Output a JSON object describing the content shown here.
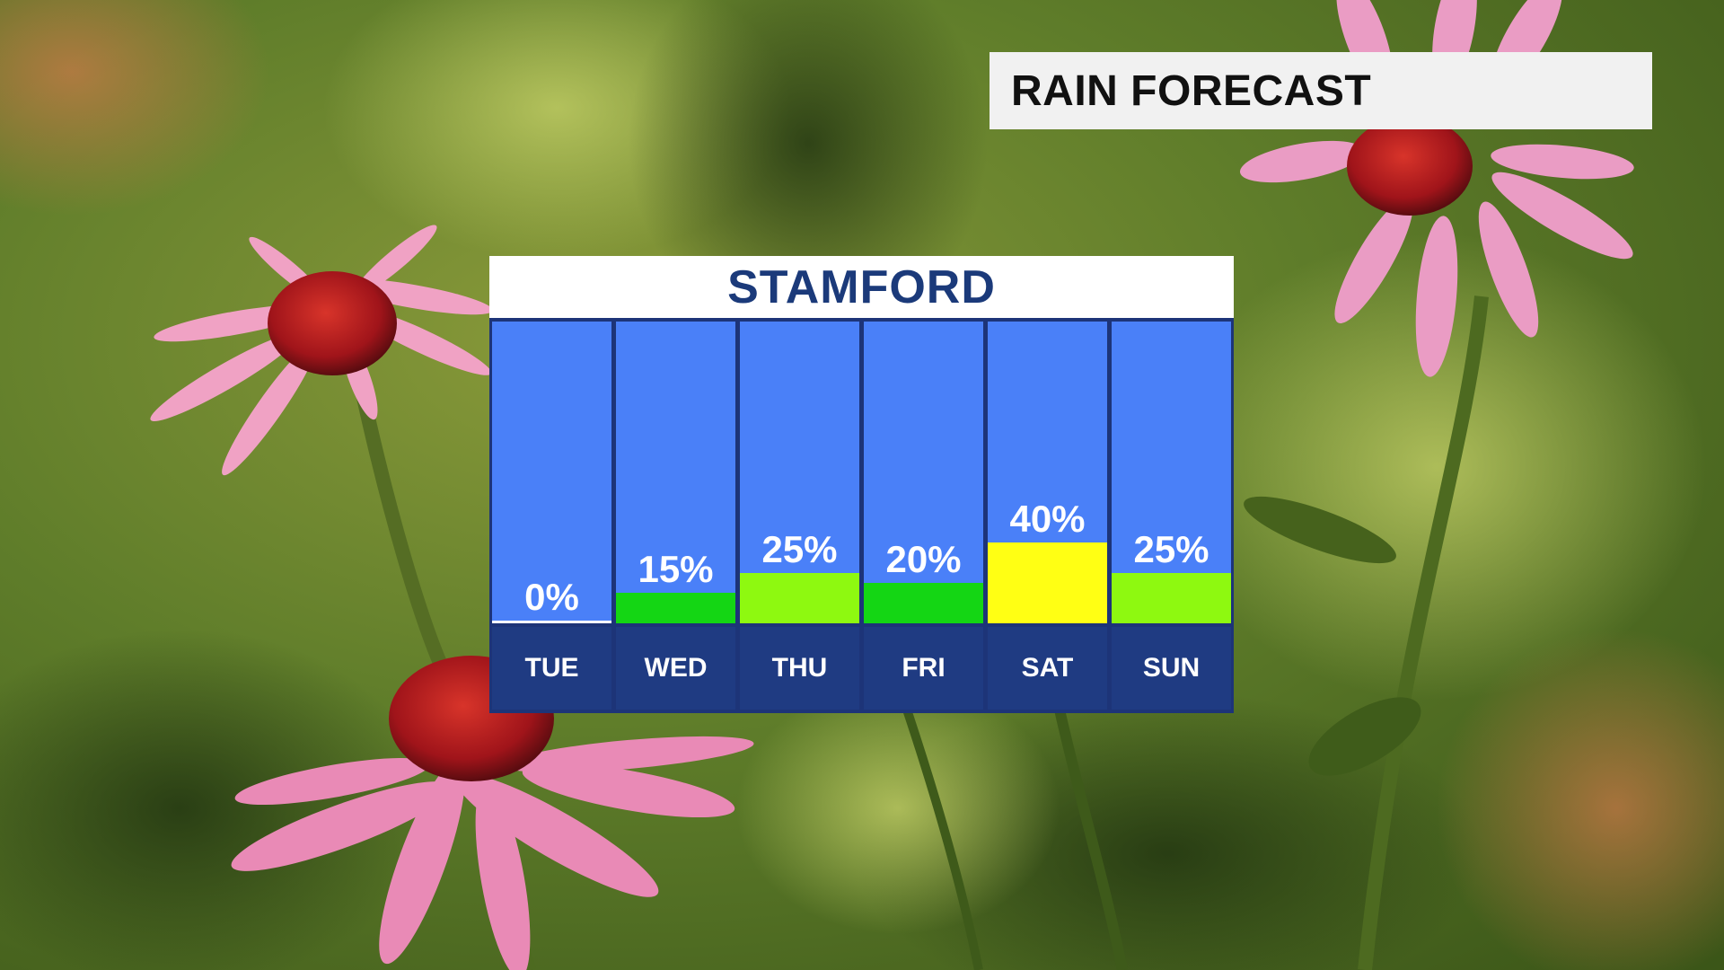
{
  "chart_data": {
    "type": "bar",
    "title": "RAIN FORECAST",
    "subtitle": "STAMFORD",
    "categories": [
      "TUE",
      "WED",
      "THU",
      "FRI",
      "SAT",
      "SUN"
    ],
    "values": [
      0,
      15,
      25,
      20,
      40,
      25
    ],
    "value_labels": [
      "0%",
      "15%",
      "25%",
      "20%",
      "40%",
      "25%"
    ],
    "bar_colors": [
      "#ffffff",
      "#14d614",
      "#8ef910",
      "#14d614",
      "#ffff14",
      "#8ef910"
    ],
    "ylim": [
      0,
      150
    ],
    "grid": false,
    "legend": "none"
  },
  "colors": {
    "column_bg": "#4a80f8",
    "day_bg": "#1f3b82",
    "frame": "#1d3478",
    "title_text": "#111111",
    "subtitle_text": "#1b3a7a"
  },
  "background": "coneflower-garden-photo"
}
